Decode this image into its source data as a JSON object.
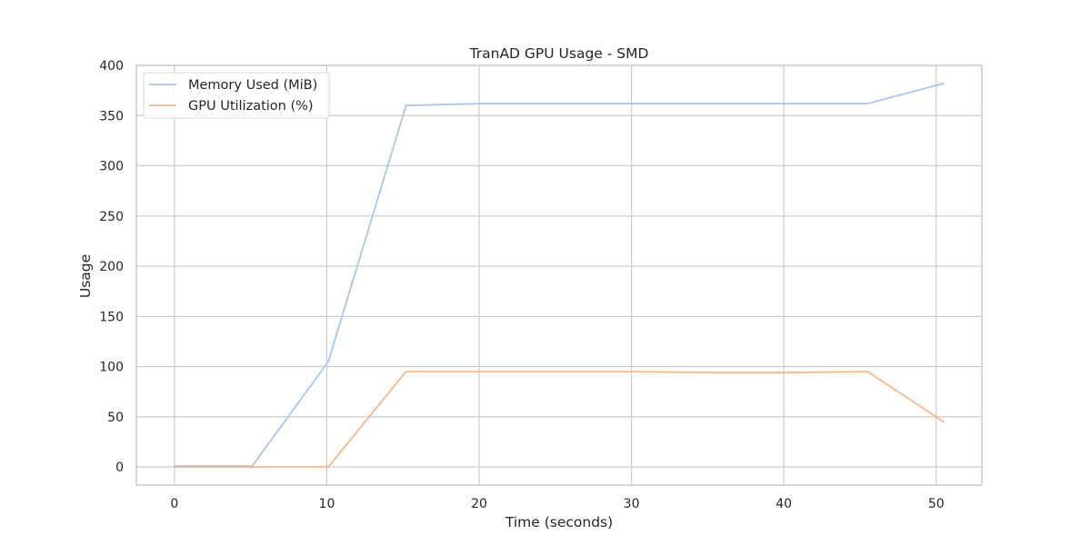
{
  "chart_data": {
    "type": "line",
    "title": "TranAD GPU Usage - SMD",
    "xlabel": "Time (seconds)",
    "ylabel": "Usage",
    "xlim": [
      -2.5,
      53
    ],
    "ylim": [
      -18,
      400
    ],
    "xticks": [
      0,
      10,
      20,
      30,
      40,
      50
    ],
    "yticks": [
      0,
      50,
      100,
      150,
      200,
      250,
      300,
      350,
      400
    ],
    "grid": true,
    "legend_position": "upper-left",
    "series": [
      {
        "name": "Memory Used (MiB)",
        "color": "#a1c9f4",
        "x": [
          0,
          5.1,
          10.1,
          15.2,
          20.2,
          25.3,
          30.3,
          35.4,
          40.4,
          45.5,
          50.5
        ],
        "y": [
          1,
          1,
          105,
          360,
          362,
          362,
          362,
          362,
          362,
          362,
          382
        ]
      },
      {
        "name": "GPU Utilization (%)",
        "color": "#ffb482",
        "x": [
          0,
          5.1,
          10.1,
          15.2,
          20.2,
          25.3,
          30.3,
          35.4,
          40.4,
          45.5,
          50.5
        ],
        "y": [
          0,
          0,
          0,
          95,
          95,
          95,
          95,
          94,
          94,
          95,
          45
        ]
      }
    ]
  }
}
